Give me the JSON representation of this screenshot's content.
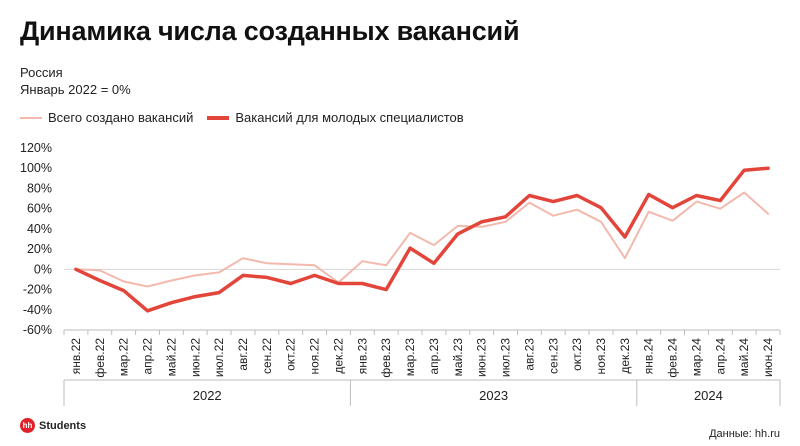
{
  "header": {
    "title": "Динамика числа созданных вакансий",
    "subtitle_line1": "Россия",
    "subtitle_line2": "Январь 2022 = 0%"
  },
  "footer": {
    "logo_mark": "hh",
    "logo_text": "Students",
    "source": "Данные: hh.ru"
  },
  "colors": {
    "series_total": "#f3b9ad",
    "series_young": "#e3453a",
    "axis": "#bdbdbd"
  },
  "chart_data": {
    "type": "line",
    "title": "Динамика числа созданных вакансий",
    "xlabel": "",
    "ylabel": "",
    "ylim": [
      -60,
      120
    ],
    "yticks": [
      "120%",
      "100%",
      "80%",
      "60%",
      "40%",
      "20%",
      "0%",
      "-20%",
      "-40%",
      "-60%"
    ],
    "legend_position": "top-left",
    "categories": [
      "янв.22",
      "фев.22",
      "мар.22",
      "апр.22",
      "май.22",
      "июн.22",
      "июл.22",
      "авг.22",
      "сен.22",
      "окт.22",
      "ноя.22",
      "дек.22",
      "янв.23",
      "фев.23",
      "мар.23",
      "апр.23",
      "май.23",
      "июн.23",
      "июл.23",
      "авг.23",
      "сен.23",
      "окт.23",
      "ноя.23",
      "дек.23",
      "янв.24",
      "фев.24",
      "мар.24",
      "апр.24",
      "май.24",
      "июн.24"
    ],
    "years": [
      {
        "label": "2022",
        "from": 0,
        "to": 11
      },
      {
        "label": "2023",
        "from": 12,
        "to": 23
      },
      {
        "label": "2024",
        "from": 24,
        "to": 29
      }
    ],
    "series": [
      {
        "name": "Всего создано вакансий",
        "values": [
          0,
          -1,
          -12,
          -17,
          -11,
          -6,
          -3,
          11,
          6,
          5,
          4,
          -13,
          8,
          4,
          36,
          24,
          43,
          42,
          47,
          66,
          53,
          59,
          47,
          11,
          57,
          48,
          67,
          60,
          76,
          55
        ]
      },
      {
        "name": "Вакансий для молодых специалистов",
        "values": [
          0,
          -11,
          -21,
          -41,
          -33,
          -27,
          -23,
          -6,
          -8,
          -14,
          -6,
          -14,
          -14,
          -20,
          21,
          6,
          35,
          47,
          52,
          73,
          67,
          73,
          61,
          32,
          74,
          61,
          73,
          68,
          98,
          100
        ]
      }
    ]
  }
}
